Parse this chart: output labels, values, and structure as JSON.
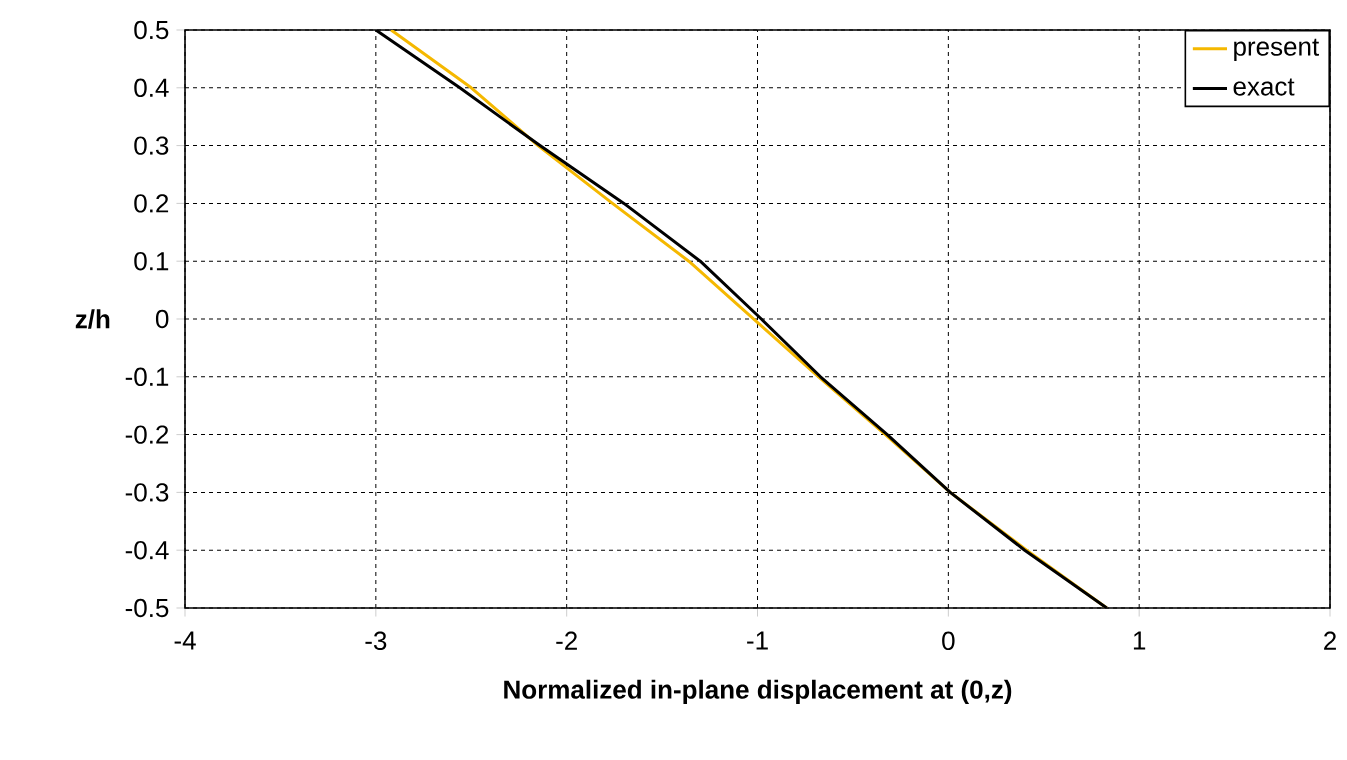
{
  "chart_data": {
    "type": "line",
    "xlabel": "Normalized in-plane displacement at (0,z)",
    "ylabel": "z/h",
    "series": [
      {
        "name": "present",
        "color": "#f5b800",
        "x": [
          -2.92,
          -2.5,
          -2.15,
          -1.76,
          -1.36,
          -1.02,
          -0.68,
          -0.33,
          0.01,
          0.41,
          0.83
        ],
        "values": [
          0.5,
          0.4,
          0.3,
          0.2,
          0.1,
          0.0,
          -0.1,
          -0.2,
          -0.3,
          -0.4,
          -0.5
        ]
      },
      {
        "name": "exact",
        "color": "#000000",
        "x": [
          -3.0,
          -2.56,
          -2.14,
          -1.7,
          -1.3,
          -0.98,
          -0.67,
          -0.32,
          0.01,
          0.4,
          0.83
        ],
        "values": [
          0.5,
          0.4,
          0.3,
          0.2,
          0.1,
          0.0,
          -0.1,
          -0.2,
          -0.3,
          -0.4,
          -0.5
        ]
      }
    ],
    "xlim": [
      -4,
      2
    ],
    "ylim": [
      -0.5,
      0.5
    ],
    "xticks": [
      -4,
      -3,
      -2,
      -1,
      0,
      1,
      2
    ],
    "yticks": [
      -0.5,
      -0.4,
      -0.3,
      -0.2,
      -0.1,
      0,
      0.1,
      0.2,
      0.3,
      0.4,
      0.5
    ],
    "grid": true,
    "legend": "top right",
    "marker": "none",
    "line_style": "solid"
  }
}
